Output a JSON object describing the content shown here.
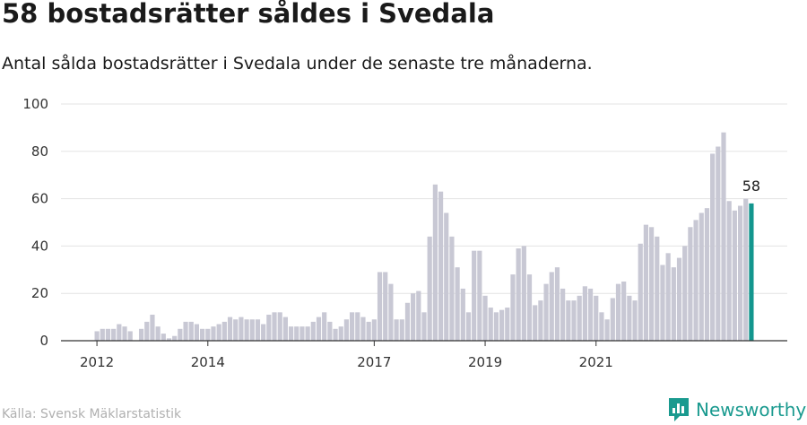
{
  "chart_data": {
    "type": "bar",
    "title": "58 bostadsrätter såldes i Svedala",
    "subtitle": "Antal sålda bostadsrätter i Svedala under de senaste tre månaderna.",
    "xlabel": "",
    "ylabel": "",
    "ylim": [
      0,
      100
    ],
    "yticks": [
      "0",
      "20",
      "40",
      "60",
      "80",
      "100"
    ],
    "xticks": [
      {
        "label": "2012",
        "index": 0
      },
      {
        "label": "2014",
        "index": 20
      },
      {
        "label": "2017",
        "index": 50
      },
      {
        "label": "2019",
        "index": 70
      },
      {
        "label": "2021",
        "index": 90
      }
    ],
    "period": "2012-01 to 2021-12, rolling three-month totals, monthly",
    "values": [
      4,
      5,
      5,
      5,
      7,
      6,
      4,
      0,
      5,
      8,
      11,
      6,
      3,
      1,
      2,
      5,
      8,
      8,
      7,
      5,
      5,
      6,
      7,
      8,
      10,
      9,
      10,
      9,
      9,
      9,
      7,
      11,
      12,
      12,
      10,
      6,
      6,
      6,
      6,
      8,
      10,
      12,
      8,
      5,
      6,
      9,
      12,
      12,
      10,
      8,
      9,
      29,
      29,
      24,
      9,
      9,
      16,
      20,
      21,
      12,
      44,
      66,
      63,
      54,
      44,
      31,
      22,
      12,
      38,
      38,
      19,
      14,
      12,
      13,
      14,
      28,
      39,
      40,
      28,
      15,
      17,
      24,
      29,
      31,
      22,
      17,
      17,
      19,
      23,
      22,
      19,
      12,
      9,
      18,
      24,
      25,
      19,
      17,
      41,
      49,
      48,
      44,
      32,
      37,
      31,
      35,
      40,
      48,
      51,
      54,
      56,
      79,
      82,
      88,
      59,
      55,
      57,
      60,
      58
    ],
    "highlight_label": "58",
    "colors": {
      "bar": "#c8c8d4",
      "highlight": "#13968e",
      "grid": "#e3e3e3",
      "axis": "#333333"
    }
  },
  "source": "Källa: Svensk Mäklarstatistik",
  "brand": {
    "name": "Newsworthy",
    "icon": "newsworthy-logo-icon",
    "color": "#1a9a8f"
  }
}
